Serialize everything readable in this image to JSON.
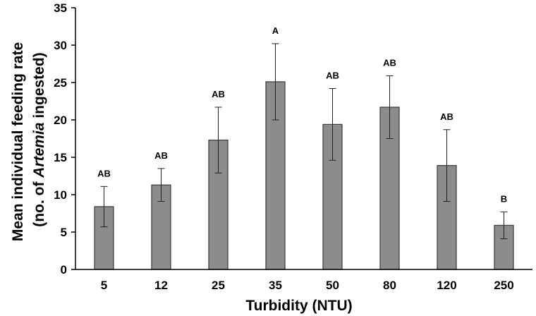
{
  "chart_data": {
    "type": "bar",
    "categories": [
      "5",
      "12",
      "25",
      "35",
      "50",
      "80",
      "120",
      "250"
    ],
    "values": [
      8.4,
      11.3,
      17.3,
      25.1,
      19.4,
      21.7,
      13.9,
      5.9
    ],
    "errors": [
      2.7,
      2.2,
      4.4,
      5.1,
      4.8,
      4.2,
      4.8,
      1.8
    ],
    "significance": [
      "AB",
      "AB",
      "AB",
      "A",
      "AB",
      "AB",
      "AB",
      "B"
    ],
    "xlabel": "Turbidity (NTU)",
    "ylabel_line1": "Mean individual feeding rate",
    "ylabel_line2_prefix": "(no. of ",
    "ylabel_line2_italic": "Artemia",
    "ylabel_line2_suffix": " ingested)",
    "ylim": [
      0,
      35
    ],
    "yticks": [
      0,
      5,
      10,
      15,
      20,
      25,
      30,
      35
    ],
    "grid": false,
    "bar_color": "#8c8c8c"
  }
}
